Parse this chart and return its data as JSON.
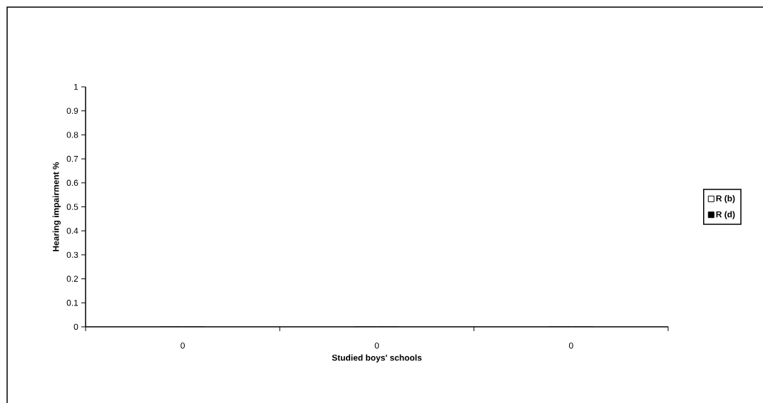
{
  "chart_data": {
    "type": "bar",
    "xlabel": "Studied boys' schools",
    "ylabel": "Hearing impairment %",
    "categories": [
      "0",
      "0",
      "0"
    ],
    "series": [
      {
        "name": "R (b)",
        "color": "#ffffff",
        "values": [
          0,
          0,
          0
        ]
      },
      {
        "name": "R (d)",
        "color": "#000000",
        "values": [
          0,
          0,
          0
        ]
      }
    ],
    "ylim": [
      0,
      1
    ],
    "yticks": [
      0,
      0.1,
      0.2,
      0.3,
      0.4,
      0.5,
      0.6,
      0.7,
      0.8,
      0.9,
      1
    ],
    "legend": "right"
  }
}
